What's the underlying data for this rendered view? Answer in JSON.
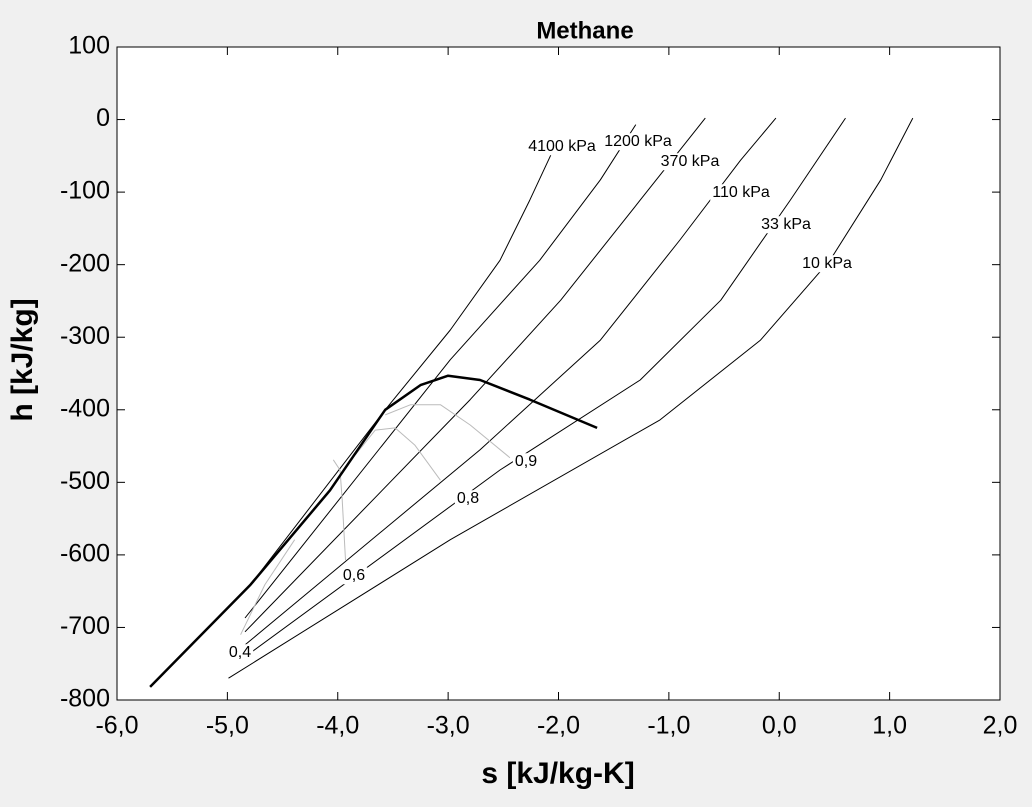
{
  "chart_data": {
    "type": "line",
    "title": "Methane",
    "x_label": "s [kJ/kg-K]",
    "y_label": "h [kJ/kg]",
    "xlim": [
      -6,
      2
    ],
    "ylim": [
      -800,
      100
    ],
    "xticks": [
      {
        "value": -6,
        "label": "-6,0"
      },
      {
        "value": -5,
        "label": "-5,0"
      },
      {
        "value": -4,
        "label": "-4,0"
      },
      {
        "value": -3,
        "label": "-3,0"
      },
      {
        "value": -2,
        "label": "-2,0"
      },
      {
        "value": -1,
        "label": "-1,0"
      },
      {
        "value": 0,
        "label": "0,0"
      },
      {
        "value": 1,
        "label": "1,0"
      },
      {
        "value": 2,
        "label": "2,0"
      }
    ],
    "yticks": [
      100,
      0,
      -100,
      -200,
      -300,
      -400,
      -500,
      -600,
      -700,
      -800
    ],
    "series": [
      {
        "name": "10 kPa",
        "color": "#000000",
        "linewidth": 1,
        "x": [
          -4.99,
          -2.98,
          -1.08,
          -0.17,
          0.46,
          0.92,
          1.21
        ],
        "values": [
          -770,
          -579,
          -414,
          -304,
          -194,
          -83,
          2
        ]
      },
      {
        "name": "33 kPa",
        "color": "#000000",
        "linewidth": 1,
        "x": [
          -4.88,
          -2.53,
          -1.26,
          -0.53,
          0.1,
          0.6
        ],
        "values": [
          -745,
          -483,
          -359,
          -249,
          -111,
          2
        ]
      },
      {
        "name": "110 kPa",
        "color": "#000000",
        "linewidth": 1,
        "x": [
          -4.84,
          -2.71,
          -1.62,
          -0.9,
          -0.35,
          -0.03
        ],
        "values": [
          -724,
          -455,
          -304,
          -166,
          -56,
          2
        ]
      },
      {
        "name": "370 kPa",
        "color": "#000000",
        "linewidth": 1,
        "x": [
          -4.84,
          -2.8,
          -1.98,
          -1.26,
          -0.67
        ],
        "values": [
          -706,
          -386,
          -249,
          -111,
          2
        ]
      },
      {
        "name": "1200 kPa",
        "color": "#000000",
        "linewidth": 1,
        "x": [
          -4.84,
          -2.98,
          -2.17,
          -1.62,
          -1.3
        ],
        "values": [
          -687,
          -331,
          -194,
          -83,
          -7
        ]
      },
      {
        "name": "4100 kPa",
        "color": "#000000",
        "linewidth": 1,
        "x": [
          -4.79,
          -3.57,
          -2.98,
          -2.53,
          -2.26,
          -2.07
        ],
        "values": [
          -641,
          -400,
          -290,
          -194,
          -111,
          -49
        ]
      },
      {
        "name": "0,4",
        "color": "#bbbbbb",
        "linewidth": 1,
        "x": [
          -4.88,
          -4.66,
          -4.39
        ],
        "values": [
          -710,
          -641,
          -579
        ]
      },
      {
        "name": "0,6",
        "color": "#bbbbbb",
        "linewidth": 1,
        "x": [
          -3.93,
          -3.96,
          -3.98,
          -4.04
        ],
        "values": [
          -607,
          -524,
          -483,
          -469
        ]
      },
      {
        "name": "0,8",
        "color": "#bbbbbb",
        "linewidth": 1,
        "x": [
          -3.07,
          -3.3,
          -3.48,
          -3.66,
          -3.84
        ],
        "values": [
          -497,
          -449,
          -425,
          -428,
          -462
        ]
      },
      {
        "name": "0,9",
        "color": "#bbbbbb",
        "linewidth": 1,
        "x": [
          -2.44,
          -2.8,
          -3.07,
          -3.34,
          -3.57
        ],
        "values": [
          -466,
          -421,
          -393,
          -393,
          -407
        ]
      },
      {
        "name": "saturation",
        "color": "#000000",
        "linewidth": 2.5,
        "x": [
          -5.7,
          -4.79,
          -4.07,
          -3.57,
          -3.25,
          -3.0,
          -2.71,
          -2.26,
          -1.65
        ],
        "values": [
          -782,
          -641,
          -511,
          -400,
          -366,
          -353,
          -359,
          -386,
          -425
        ]
      }
    ]
  }
}
